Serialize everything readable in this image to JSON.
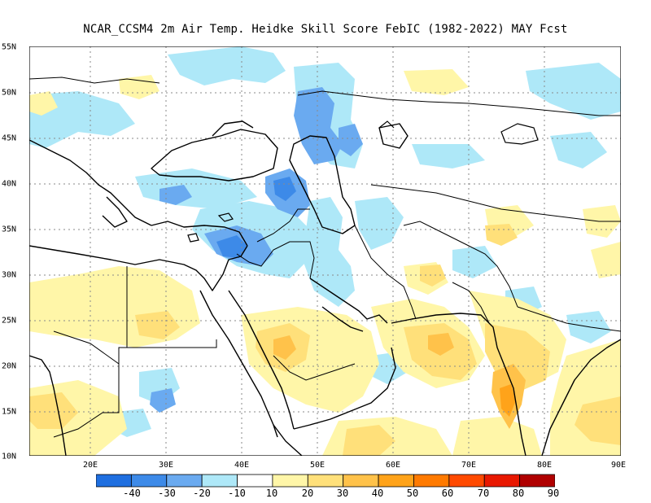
{
  "title": "NCAR_CCSM4  2m Air Temp. Heidke Skill Score FebIC (1982-2022) MAY Fcst",
  "x_labels": [
    "20E",
    "30E",
    "40E",
    "50E",
    "60E",
    "70E",
    "80E",
    "90E"
  ],
  "y_labels": [
    "55N",
    "50N",
    "45N",
    "40N",
    "35N",
    "30N",
    "25N",
    "20N",
    "15N",
    "10N"
  ],
  "colorbar": {
    "labels": [
      "-40",
      "-30",
      "-20",
      "-10",
      "10",
      "20",
      "30",
      "40",
      "50",
      "60",
      "70",
      "80",
      "90"
    ],
    "colors": [
      "#1f6fe0",
      "#3d8ae8",
      "#6aaaf0",
      "#aee8f8",
      "#ffffff",
      "#fff6a8",
      "#ffe07a",
      "#ffc24a",
      "#ffa31a",
      "#ff7a00",
      "#ff4a00",
      "#e81800",
      "#b00000"
    ]
  }
}
